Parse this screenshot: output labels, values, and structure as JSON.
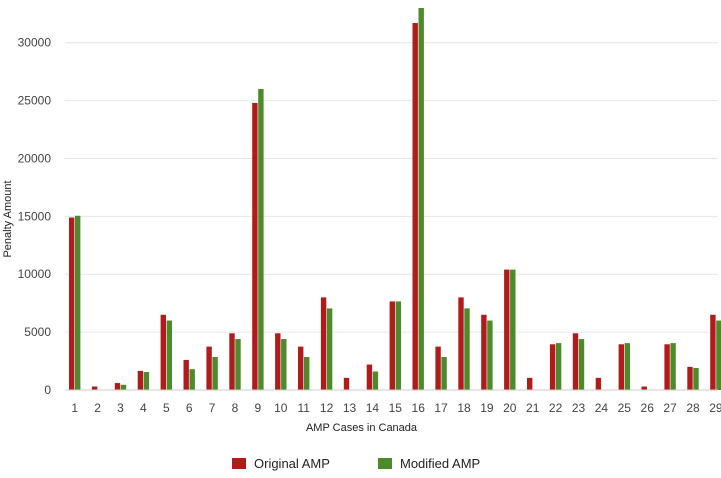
{
  "chart_data": {
    "type": "bar",
    "title": "",
    "xlabel": "AMP Cases in Canada",
    "ylabel": "Penalty Amount",
    "categories": [
      "1",
      "2",
      "3",
      "4",
      "5",
      "6",
      "7",
      "8",
      "9",
      "10",
      "11",
      "12",
      "13",
      "14",
      "15",
      "16",
      "17",
      "18",
      "19",
      "20",
      "21",
      "22",
      "23",
      "24",
      "25",
      "26",
      "27",
      "28",
      "29"
    ],
    "series": [
      {
        "name": "Original AMP",
        "color": "#b01c1c",
        "values": [
          14900,
          300,
          600,
          1650,
          6500,
          2600,
          3750,
          4900,
          24800,
          4900,
          3750,
          8000,
          1050,
          2200,
          7650,
          31700,
          3750,
          8000,
          6500,
          10400,
          1050,
          3950,
          4900,
          1050,
          3950,
          300,
          3950,
          2000,
          6500
        ]
      },
      {
        "name": "Modified AMP",
        "color": "#4d8a2a",
        "values": [
          15050,
          0,
          450,
          1550,
          6000,
          1800,
          2850,
          4400,
          26000,
          4400,
          2850,
          7050,
          0,
          1600,
          7650,
          33000,
          2850,
          7050,
          6000,
          10400,
          0,
          4050,
          4400,
          0,
          4050,
          0,
          4050,
          1900,
          6000
        ]
      }
    ],
    "yticks": [
      0,
      5000,
      10000,
      15000,
      20000,
      25000,
      30000
    ],
    "ylim": [
      0,
      33000
    ],
    "grid": true,
    "legend_position": "bottom-center"
  }
}
